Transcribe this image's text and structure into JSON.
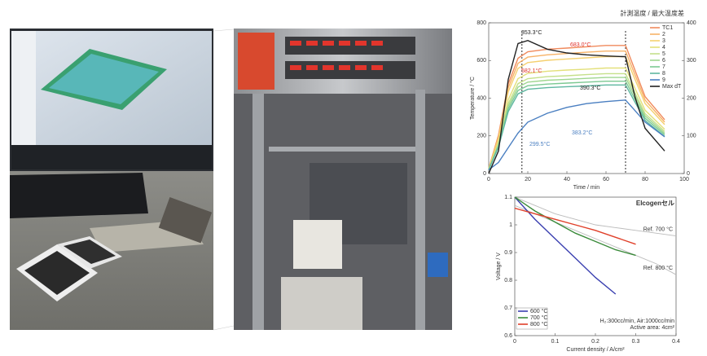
{
  "chart_data": [
    {
      "type": "line",
      "title": "計測温度 / 最大温度差",
      "x_label": "Time / min",
      "y_label": "Temperature / °C",
      "x": [
        0,
        5,
        10,
        15,
        20,
        30,
        40,
        50,
        60,
        70,
        75,
        80,
        90
      ],
      "xlim": [
        0,
        100
      ],
      "xticks": [
        0,
        20,
        40,
        60,
        80,
        100
      ],
      "ylim": [
        0,
        800
      ],
      "yticks": [
        0,
        200,
        400,
        600,
        800
      ],
      "y2lim": [
        0,
        400
      ],
      "y2ticks": [
        0,
        100,
        200,
        300,
        400
      ],
      "legend": "top-right",
      "vlines": [
        17,
        70
      ],
      "series": [
        {
          "name": "TC1",
          "color": "#f08a5d",
          "values": [
            27,
            204,
            476,
            612,
            646,
            660,
            666,
            673,
            680,
            680,
            544,
            408,
            286
          ]
        },
        {
          "name": "2",
          "color": "#f7b267",
          "values": [
            26,
            195,
            455,
            585,
            618,
            630,
            637,
            644,
            650,
            650,
            520,
            390,
            273
          ]
        },
        {
          "name": "3",
          "color": "#f5d06f",
          "values": [
            25,
            186,
            434,
            558,
            589,
            601,
            608,
            614,
            620,
            620,
            496,
            372,
            260
          ]
        },
        {
          "name": "4",
          "color": "#e3e07a",
          "values": [
            22,
            168,
            392,
            504,
            532,
            543,
            549,
            554,
            560,
            560,
            448,
            336,
            235
          ]
        },
        {
          "name": "5",
          "color": "#c5e08a",
          "values": [
            21,
            159,
            371,
            477,
            504,
            514,
            519,
            525,
            530,
            530,
            424,
            318,
            223
          ]
        },
        {
          "name": "6",
          "color": "#9fd68f",
          "values": [
            20,
            153,
            357,
            459,
            485,
            495,
            500,
            505,
            510,
            510,
            408,
            306,
            214
          ]
        },
        {
          "name": "7",
          "color": "#7cc992",
          "values": [
            20,
            147,
            343,
            441,
            466,
            475,
            480,
            485,
            490,
            490,
            392,
            294,
            206
          ]
        },
        {
          "name": "8",
          "color": "#5fb7a0",
          "values": [
            19,
            141,
            329,
            423,
            447,
            456,
            461,
            465,
            470,
            470,
            376,
            282,
            197
          ]
        },
        {
          "name": "9",
          "color": "#4a7fc1",
          "values": [
            20,
            59,
            137,
            215,
            273,
            320,
            351,
            371,
            382,
            390,
            332,
            273,
            195
          ]
        },
        {
          "name": "Max dT",
          "color": "#222222",
          "axis": "y2",
          "values": [
            0,
            60,
            250,
            345,
            353,
            330,
            320,
            315,
            312,
            310,
            200,
            120,
            60
          ]
        }
      ],
      "annotations": [
        {
          "text": "353.3°C",
          "color": "#222222"
        },
        {
          "text": "683.0°C",
          "color": "#e0302a"
        },
        {
          "text": "582.1°C",
          "color": "#e0302a"
        },
        {
          "text": "390.3°C",
          "color": "#222222"
        },
        {
          "text": "383.2°C",
          "color": "#4a7fc1"
        },
        {
          "text": "299.5°C",
          "color": "#4a7fc1"
        }
      ]
    },
    {
      "type": "line",
      "title": "Elcogenセル",
      "x_label": "Current density / A/cm²",
      "y_label": "Voltage / V",
      "x": [
        0,
        0.05,
        0.1,
        0.15,
        0.2,
        0.25,
        0.3,
        0.35,
        0.4
      ],
      "xlim": [
        0,
        0.4
      ],
      "xticks": [
        0,
        0.1,
        0.2,
        0.3,
        0.4
      ],
      "ylim": [
        0.6,
        1.1
      ],
      "yticks": [
        0.6,
        0.7,
        0.8,
        0.9,
        1.0,
        1.1
      ],
      "legend": "bottom-left",
      "series": [
        {
          "name": "600 °C",
          "color": "#3a3fb0",
          "values": [
            1.1,
            1.02,
            0.95,
            0.88,
            0.81,
            0.75,
            null,
            null,
            null
          ]
        },
        {
          "name": "700 °C",
          "color": "#3a8a3a",
          "values": [
            1.1,
            1.05,
            1.01,
            0.97,
            0.94,
            0.91,
            0.89,
            null,
            null
          ]
        },
        {
          "name": "800 °C",
          "color": "#e0402a",
          "values": [
            1.06,
            1.04,
            1.02,
            1.0,
            0.98,
            0.955,
            0.93,
            null,
            null
          ]
        }
      ],
      "references": [
        {
          "name": "Ref. 700 °C",
          "color": "#bbbbbb",
          "values": [
            1.1,
            1.07,
            1.04,
            1.02,
            1.0,
            0.99,
            0.98,
            0.97,
            0.96
          ]
        },
        {
          "name": "Ref. 800 °C",
          "color": "#bbbbbb",
          "values": [
            1.07,
            1.04,
            1.01,
            0.98,
            0.95,
            0.92,
            0.89,
            0.86,
            0.82
          ]
        }
      ],
      "annotations": [
        {
          "text": "H₂:300cc/min, Air:1000cc/min",
          "color": "#333333"
        },
        {
          "text": "Active area: 4cm²",
          "color": "#333333"
        }
      ]
    }
  ]
}
